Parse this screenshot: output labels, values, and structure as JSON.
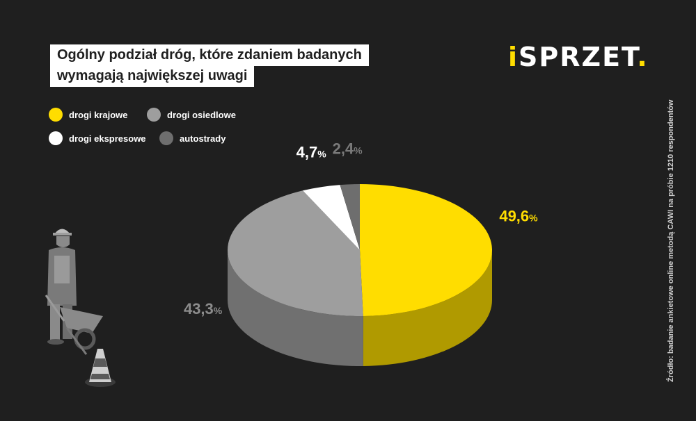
{
  "title": {
    "line1": "Ogólny podział dróg, które zdaniem badanych",
    "line2": "wymagają największej uwagi"
  },
  "logo": {
    "accent": "i",
    "main": "SPRZET",
    "dot": "."
  },
  "source": "Źródło: badanie ankietowe online metodą CAWI na próbie 1210 respondentów",
  "chart_data": {
    "type": "pie",
    "title": "Ogólny podział dróg, które zdaniem badanych wymagają największej uwagi",
    "categories": [
      "drogi krajowe",
      "drogi osiedlowe",
      "drogi ekspresowe",
      "autostrady"
    ],
    "values": [
      49.6,
      43.3,
      4.7,
      2.4
    ],
    "labels": [
      "49,6",
      "43,3",
      "4,7",
      "2,4"
    ],
    "unit": "%",
    "colors": [
      "#ffdd00",
      "#9e9e9e",
      "#ffffff",
      "#6e6e6e"
    ],
    "side_colors": [
      "#b09a00",
      "#707070",
      "#bdbdbd",
      "#4a4a4a"
    ],
    "label_colors": [
      "#ffdd00",
      "#8c8c8c",
      "#ffffff",
      "#7a7a7a"
    ],
    "legend_order": [
      0,
      1,
      2,
      3
    ],
    "legend_placement": "top-left"
  }
}
